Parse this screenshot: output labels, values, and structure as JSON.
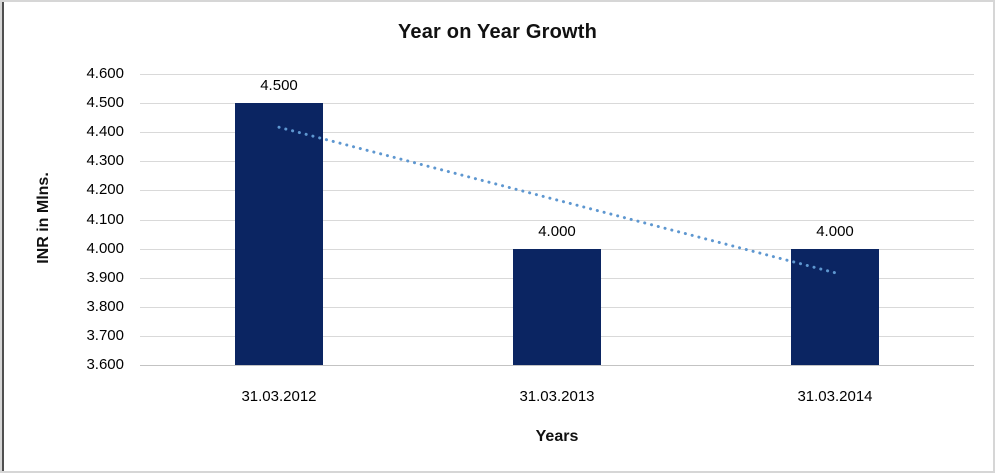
{
  "chart_data": {
    "type": "bar",
    "title": "Year on Year Growth",
    "xlabel": "Years",
    "ylabel": "INR in Mlns.",
    "categories": [
      "31.03.2012",
      "31.03.2013",
      "31.03.2014"
    ],
    "values": [
      4.5,
      4.0,
      4.0
    ],
    "data_labels": [
      "4.500",
      "4.000",
      "4.000"
    ],
    "ylim": [
      3.6,
      4.6
    ],
    "ytick_step": 0.1,
    "ytick_labels": [
      "4.600",
      "4.500",
      "4.400",
      "4.300",
      "4.200",
      "4.100",
      "4.000",
      "3.900",
      "3.800",
      "3.700",
      "3.600"
    ],
    "grid": true,
    "legend": "none",
    "colors": {
      "bar": "#0b2562",
      "trendline": "#5e97d0",
      "gridline": "#d9d9d9",
      "axis_line": "#c3c3c3",
      "text": "#000000"
    },
    "trendline": {
      "type": "linear",
      "style": "dotted",
      "start_value": 4.417,
      "end_value": 3.917
    }
  }
}
